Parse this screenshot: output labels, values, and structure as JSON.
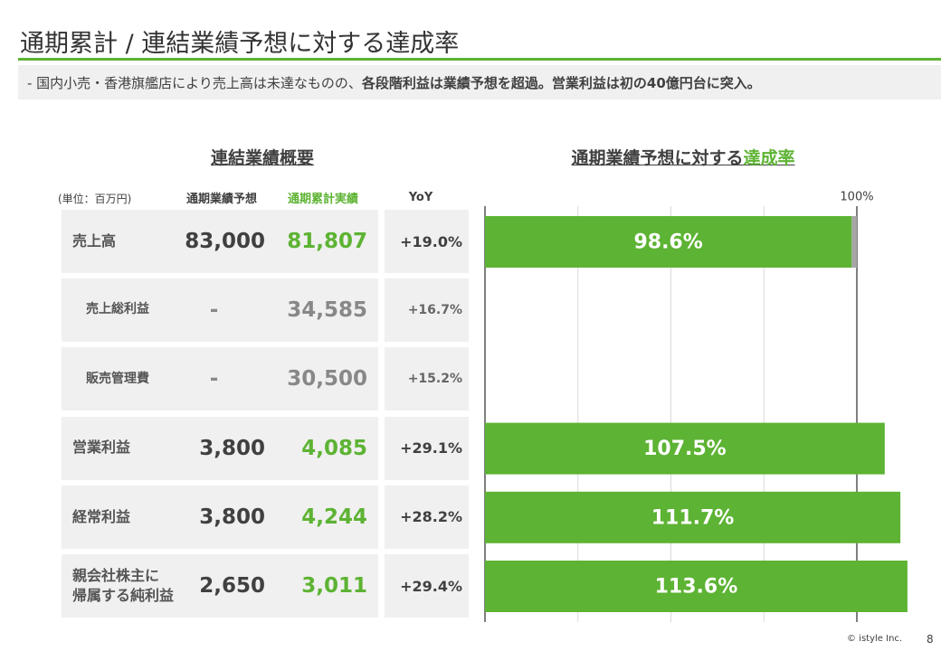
{
  "header": {
    "title": "通期累計 / 連結業績予想に対する達成率",
    "summary_plain": "- 国内小売・香港旗艦店により売上高は未達なものの、",
    "summary_bold": "各段階利益は業績予想を超過。営業利益は初の40億円台に突入。"
  },
  "table": {
    "heading": "連結業績概要",
    "unit": "(単位：百万円)",
    "columns": [
      "通期業績予想",
      "通期累計実績",
      "YoY"
    ],
    "rows": [
      [
        "売上高",
        "83,000",
        "81,807",
        "+19.0%"
      ],
      [
        "売上総利益",
        "-",
        "34,585",
        "+16.7%"
      ],
      [
        "販売管理費",
        "-",
        "30,500",
        "+15.2%"
      ],
      [
        "営業利益",
        "3,800",
        "4,085",
        "+29.1%"
      ],
      [
        "経常利益",
        "3,800",
        "4,244",
        "+28.2%"
      ],
      [
        "親会社株主に\n帰属する純利益",
        "2,650",
        "3,011",
        "+29.4%"
      ]
    ]
  },
  "chart_data": {
    "type": "bar",
    "orientation": "horizontal",
    "title_plain": "通期業績予想に対する",
    "title_highlight": "達成率",
    "values": [
      98.6,
      null,
      null,
      107.5,
      111.7,
      113.6
    ],
    "value_labels": [
      "98.6%",
      null,
      null,
      "107.5%",
      "111.7%",
      "113.6%"
    ],
    "color": "#5db333",
    "xlim": [
      0,
      100
    ],
    "xticks": [
      0,
      25,
      50,
      75,
      100
    ],
    "grid": true,
    "reference": {
      "value": 100,
      "label": "100%"
    }
  },
  "footer": {
    "copyright": "© istyle Inc.",
    "page": "8"
  }
}
